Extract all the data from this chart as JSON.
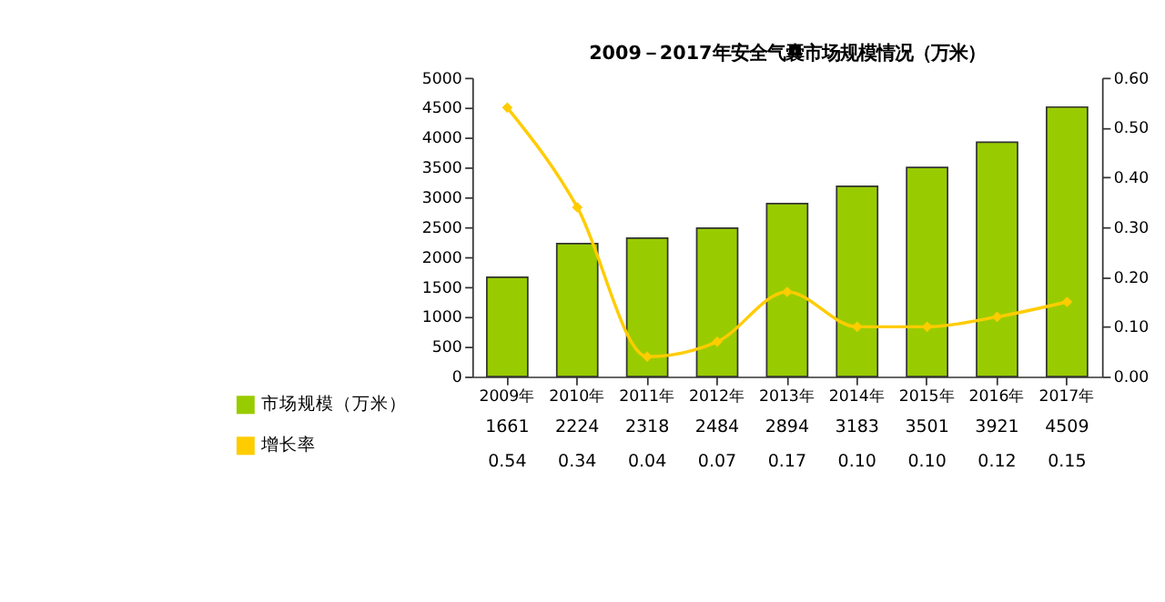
{
  "chart_data": {
    "type": "bar",
    "title": "2009－2017年安全气囊市场规模情况（万米）",
    "categories": [
      "2009年",
      "2010年",
      "2011年",
      "2012年",
      "2013年",
      "2014年",
      "2015年",
      "2016年",
      "2017年"
    ],
    "series": [
      {
        "name": "市场规模（万米）",
        "color": "#99cc00",
        "values": [
          1661,
          2224,
          2318,
          2484,
          2894,
          3183,
          3501,
          3921,
          4509
        ],
        "value_labels": [
          "1661",
          "2224",
          "2318",
          "2484",
          "2894",
          "3183",
          "3501",
          "3921",
          "4509"
        ]
      },
      {
        "name": "增长率",
        "type": "line",
        "axis": "y2",
        "color": "#ffcc00",
        "marker": "diamond",
        "line_style": "solid",
        "values": [
          0.54,
          0.34,
          0.04,
          0.07,
          0.17,
          0.1,
          0.1,
          0.12,
          0.15
        ],
        "value_labels": [
          "0.54",
          "0.34",
          "0.04",
          "0.07",
          "0.17",
          "0.10",
          "0.10",
          "0.12",
          "0.15"
        ]
      }
    ],
    "ylim": [
      0,
      5000
    ],
    "yticks": [
      0,
      500,
      1000,
      1500,
      2000,
      2500,
      3000,
      3500,
      4000,
      4500,
      5000
    ],
    "y2lim": [
      0,
      0.6
    ],
    "y2ticks": [
      {
        "value": 0,
        "label": "0.00"
      },
      {
        "value": 0.1,
        "label": "0.10"
      },
      {
        "value": 0.2,
        "label": "0.20"
      },
      {
        "value": 0.3,
        "label": "0.30"
      },
      {
        "value": 0.4,
        "label": "0.40"
      },
      {
        "value": 0.5,
        "label": "0.50"
      },
      {
        "value": 0.6,
        "label": "0.60"
      }
    ],
    "legend": "bottom left",
    "grid": false
  }
}
